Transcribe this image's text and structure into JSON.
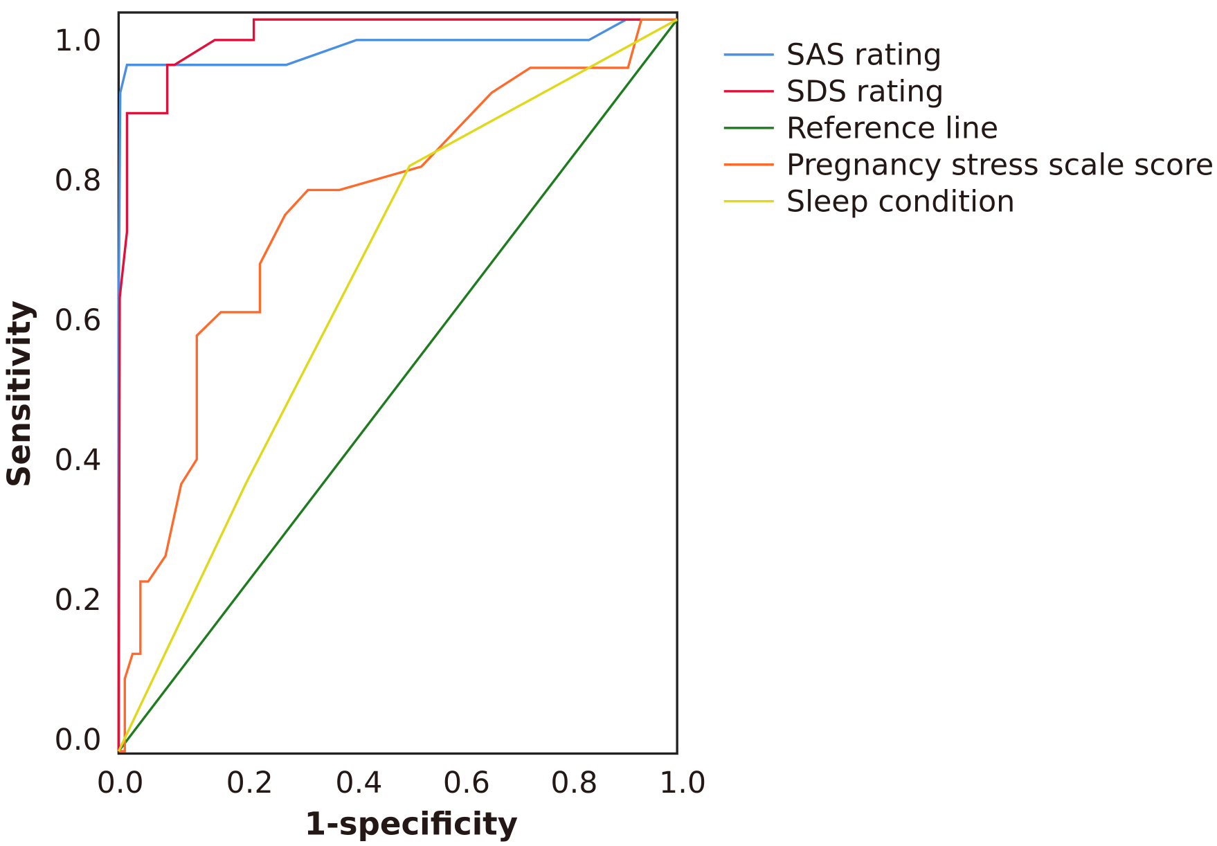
{
  "chart_data": {
    "type": "line",
    "title": "",
    "xlabel": "1-specificity",
    "ylabel": "Sensitivity",
    "xlim": [
      0,
      1
    ],
    "ylim": [
      0,
      1
    ],
    "xticks": [
      "0.0",
      "0.2",
      "0.4",
      "0.6",
      "0.8",
      "1.0"
    ],
    "yticks": [
      "0.0",
      "0.2",
      "0.4",
      "0.6",
      "0.8",
      "1.0"
    ],
    "grid": false,
    "legend_position": "right",
    "series": [
      {
        "name": "SAS rating",
        "color": "#4a90e2",
        "points": [
          [
            0,
            0
          ],
          [
            0,
            0.6
          ],
          [
            0.003,
            0.9
          ],
          [
            0.015,
            0.938
          ],
          [
            0.3,
            0.938
          ],
          [
            0.426,
            0.972
          ],
          [
            0.842,
            0.972
          ],
          [
            0.909,
            1.0
          ],
          [
            1,
            1
          ]
        ]
      },
      {
        "name": "SDS rating",
        "color": "#e0103a",
        "points": [
          [
            0,
            0
          ],
          [
            0.002,
            0.62
          ],
          [
            0.015,
            0.71
          ],
          [
            0.015,
            0.872
          ],
          [
            0.087,
            0.872
          ],
          [
            0.087,
            0.938
          ],
          [
            0.1,
            0.938
          ],
          [
            0.172,
            0.972
          ],
          [
            0.242,
            0.972
          ],
          [
            0.242,
            1.0
          ],
          [
            1,
            1
          ]
        ]
      },
      {
        "name": "Reference line",
        "color": "#1e7b1e",
        "points": [
          [
            0,
            0
          ],
          [
            1,
            1
          ]
        ]
      },
      {
        "name": "Pregnancy stress scale score",
        "color": "#ff6a2a",
        "points": [
          [
            0,
            0
          ],
          [
            0.011,
            0
          ],
          [
            0.011,
            0.099
          ],
          [
            0.025,
            0.133
          ],
          [
            0.039,
            0.133
          ],
          [
            0.039,
            0.232
          ],
          [
            0.053,
            0.232
          ],
          [
            0.084,
            0.267
          ],
          [
            0.112,
            0.365
          ],
          [
            0.14,
            0.399
          ],
          [
            0.14,
            0.568
          ],
          [
            0.183,
            0.6
          ],
          [
            0.253,
            0.6
          ],
          [
            0.253,
            0.666
          ],
          [
            0.298,
            0.733
          ],
          [
            0.339,
            0.767
          ],
          [
            0.395,
            0.767
          ],
          [
            0.542,
            0.799
          ],
          [
            0.668,
            0.9
          ],
          [
            0.737,
            0.934
          ],
          [
            0.912,
            0.934
          ],
          [
            0.936,
            1.0
          ],
          [
            1,
            1
          ]
        ]
      },
      {
        "name": "Sleep condition",
        "color": "#e0d81a",
        "points": [
          [
            0,
            0
          ],
          [
            0.228,
            0.366
          ],
          [
            0.521,
            0.8
          ],
          [
            1,
            1
          ]
        ]
      }
    ]
  }
}
